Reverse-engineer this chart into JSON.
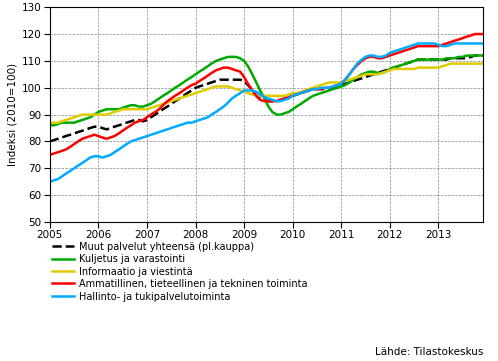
{
  "ylabel": "Indeksi (2010=100)",
  "ylim": [
    50,
    130
  ],
  "yticks": [
    50,
    60,
    70,
    80,
    90,
    100,
    110,
    120,
    130
  ],
  "xlim": [
    2005.0,
    2013.92
  ],
  "xticks": [
    2005,
    2006,
    2007,
    2008,
    2009,
    2010,
    2011,
    2012,
    2013
  ],
  "source": "Lähde: Tilastokeskus",
  "series": {
    "muut": {
      "label": "Muut palvelut yhteensä (pl.kauppa)",
      "color": "#000000",
      "linestyle": "--",
      "linewidth": 1.8,
      "x": [
        2005.0,
        2005.08,
        2005.17,
        2005.25,
        2005.33,
        2005.42,
        2005.5,
        2005.58,
        2005.67,
        2005.75,
        2005.83,
        2005.92,
        2006.0,
        2006.08,
        2006.17,
        2006.25,
        2006.33,
        2006.42,
        2006.5,
        2006.58,
        2006.67,
        2006.75,
        2006.83,
        2006.92,
        2007.0,
        2007.08,
        2007.17,
        2007.25,
        2007.33,
        2007.42,
        2007.5,
        2007.58,
        2007.67,
        2007.75,
        2007.83,
        2007.92,
        2008.0,
        2008.08,
        2008.17,
        2008.25,
        2008.33,
        2008.42,
        2008.5,
        2008.58,
        2008.67,
        2008.75,
        2008.83,
        2008.92,
        2009.0,
        2009.08,
        2009.17,
        2009.25,
        2009.33,
        2009.42,
        2009.5,
        2009.58,
        2009.67,
        2009.75,
        2009.83,
        2009.92,
        2010.0,
        2010.08,
        2010.17,
        2010.25,
        2010.33,
        2010.42,
        2010.5,
        2010.58,
        2010.67,
        2010.75,
        2010.83,
        2010.92,
        2011.0,
        2011.08,
        2011.17,
        2011.25,
        2011.33,
        2011.42,
        2011.5,
        2011.58,
        2011.67,
        2011.75,
        2011.83,
        2011.92,
        2012.0,
        2012.08,
        2012.17,
        2012.25,
        2012.33,
        2012.42,
        2012.5,
        2012.58,
        2012.67,
        2012.75,
        2012.83,
        2012.92,
        2013.0,
        2013.08,
        2013.17,
        2013.25,
        2013.33,
        2013.42,
        2013.5,
        2013.58,
        2013.67,
        2013.75,
        2013.83,
        2013.92
      ],
      "y": [
        80,
        80.5,
        81,
        81.5,
        82,
        82.5,
        83,
        83.5,
        84,
        84.5,
        85,
        85.5,
        85.5,
        85,
        84.5,
        85,
        85.5,
        86,
        86.5,
        87,
        87.5,
        88,
        88,
        87.5,
        88,
        89,
        90,
        91,
        92,
        93,
        94,
        95,
        96,
        97,
        98,
        99,
        100,
        100.5,
        101,
        101.5,
        102,
        102.5,
        103,
        103,
        103,
        103,
        103,
        103,
        102.5,
        101,
        99,
        97,
        96,
        95.5,
        95,
        95,
        95,
        95.5,
        96,
        96.5,
        97,
        97.5,
        98,
        98.5,
        99,
        99.5,
        99.5,
        99.5,
        99.5,
        99.5,
        100,
        100.5,
        101,
        101.5,
        102,
        102.5,
        103,
        103.5,
        104,
        104.5,
        105,
        105.5,
        106,
        106.5,
        107,
        107.5,
        108,
        108.5,
        109,
        109.5,
        110,
        110.5,
        110.5,
        110.5,
        110.5,
        110.5,
        110.5,
        110.5,
        110.5,
        111,
        111,
        111,
        111,
        111,
        111.5,
        112,
        112,
        112
      ]
    },
    "kuljetus": {
      "label": "Kuljetus ja varastointi",
      "color": "#00AA00",
      "linestyle": "-",
      "linewidth": 1.8,
      "x": [
        2005.0,
        2005.08,
        2005.17,
        2005.25,
        2005.33,
        2005.42,
        2005.5,
        2005.58,
        2005.67,
        2005.75,
        2005.83,
        2005.92,
        2006.0,
        2006.08,
        2006.17,
        2006.25,
        2006.33,
        2006.42,
        2006.5,
        2006.58,
        2006.67,
        2006.75,
        2006.83,
        2006.92,
        2007.0,
        2007.08,
        2007.17,
        2007.25,
        2007.33,
        2007.42,
        2007.5,
        2007.58,
        2007.67,
        2007.75,
        2007.83,
        2007.92,
        2008.0,
        2008.08,
        2008.17,
        2008.25,
        2008.33,
        2008.42,
        2008.5,
        2008.58,
        2008.67,
        2008.75,
        2008.83,
        2008.92,
        2009.0,
        2009.08,
        2009.17,
        2009.25,
        2009.33,
        2009.42,
        2009.5,
        2009.58,
        2009.67,
        2009.75,
        2009.83,
        2009.92,
        2010.0,
        2010.08,
        2010.17,
        2010.25,
        2010.33,
        2010.42,
        2010.5,
        2010.58,
        2010.67,
        2010.75,
        2010.83,
        2010.92,
        2011.0,
        2011.08,
        2011.17,
        2011.25,
        2011.33,
        2011.42,
        2011.5,
        2011.58,
        2011.67,
        2011.75,
        2011.83,
        2011.92,
        2012.0,
        2012.08,
        2012.17,
        2012.25,
        2012.33,
        2012.42,
        2012.5,
        2012.58,
        2012.67,
        2012.75,
        2012.83,
        2012.92,
        2013.0,
        2013.08,
        2013.17,
        2013.25,
        2013.33,
        2013.42,
        2013.5,
        2013.58,
        2013.67,
        2013.75,
        2013.83,
        2013.92
      ],
      "y": [
        86,
        86,
        86.5,
        87,
        87,
        87,
        87,
        87.5,
        88,
        88.5,
        89,
        90,
        91,
        91.5,
        92,
        92,
        92,
        92,
        92.5,
        93,
        93.5,
        93.5,
        93,
        93,
        93.5,
        94,
        95,
        96,
        97,
        98,
        99,
        100,
        101,
        102,
        103,
        104,
        105,
        106,
        107,
        108,
        109,
        110,
        110.5,
        111,
        111.5,
        111.5,
        111.5,
        111,
        110,
        108,
        105,
        102,
        99,
        96,
        93,
        91,
        90,
        90,
        90.5,
        91,
        92,
        93,
        94,
        95,
        96,
        97,
        97.5,
        98,
        98.5,
        99,
        99.5,
        100,
        100.5,
        101,
        102,
        103,
        104,
        105,
        105.5,
        106,
        106,
        105.5,
        105.5,
        106,
        107,
        107.5,
        108,
        108.5,
        109,
        109.5,
        110,
        110.5,
        110.5,
        110.5,
        110.5,
        110.5,
        110.5,
        110.5,
        111,
        111,
        111,
        111.5,
        111.5,
        112,
        112,
        112,
        112,
        112
      ]
    },
    "informaatio": {
      "label": "Informaatio ja viestintä",
      "color": "#DDCC00",
      "linestyle": "-",
      "linewidth": 1.8,
      "x": [
        2005.0,
        2005.08,
        2005.17,
        2005.25,
        2005.33,
        2005.42,
        2005.5,
        2005.58,
        2005.67,
        2005.75,
        2005.83,
        2005.92,
        2006.0,
        2006.08,
        2006.17,
        2006.25,
        2006.33,
        2006.42,
        2006.5,
        2006.58,
        2006.67,
        2006.75,
        2006.83,
        2006.92,
        2007.0,
        2007.08,
        2007.17,
        2007.25,
        2007.33,
        2007.42,
        2007.5,
        2007.58,
        2007.67,
        2007.75,
        2007.83,
        2007.92,
        2008.0,
        2008.08,
        2008.17,
        2008.25,
        2008.33,
        2008.42,
        2008.5,
        2008.58,
        2008.67,
        2008.75,
        2008.83,
        2008.92,
        2009.0,
        2009.08,
        2009.17,
        2009.25,
        2009.33,
        2009.42,
        2009.5,
        2009.58,
        2009.67,
        2009.75,
        2009.83,
        2009.92,
        2010.0,
        2010.08,
        2010.17,
        2010.25,
        2010.33,
        2010.42,
        2010.5,
        2010.58,
        2010.67,
        2010.75,
        2010.83,
        2010.92,
        2011.0,
        2011.08,
        2011.17,
        2011.25,
        2011.33,
        2011.42,
        2011.5,
        2011.58,
        2011.67,
        2011.75,
        2011.83,
        2011.92,
        2012.0,
        2012.08,
        2012.17,
        2012.25,
        2012.33,
        2012.42,
        2012.5,
        2012.58,
        2012.67,
        2012.75,
        2012.83,
        2012.92,
        2013.0,
        2013.08,
        2013.17,
        2013.25,
        2013.33,
        2013.42,
        2013.5,
        2013.58,
        2013.67,
        2013.75,
        2013.83,
        2013.92
      ],
      "y": [
        87,
        87,
        87,
        87.5,
        88,
        88.5,
        89,
        89.5,
        90,
        90,
        90,
        90,
        90,
        90,
        90,
        90.5,
        91,
        91.5,
        92,
        92,
        92,
        92,
        92,
        92,
        92,
        92.5,
        93,
        93.5,
        94,
        94.5,
        95,
        95.5,
        96,
        96.5,
        97,
        97.5,
        98,
        98.5,
        99,
        99.5,
        100,
        100.5,
        100.5,
        100.5,
        100.5,
        100,
        99.5,
        99,
        98.5,
        98,
        97.5,
        97,
        97,
        97,
        97,
        97,
        97,
        97,
        97,
        97.5,
        98,
        98,
        98.5,
        99,
        99.5,
        100,
        100.5,
        101,
        101.5,
        102,
        102,
        102,
        102,
        102.5,
        103,
        103.5,
        104,
        104.5,
        105,
        105,
        105,
        105,
        105.5,
        106,
        106.5,
        107,
        107,
        107,
        107,
        107,
        107,
        107.5,
        107.5,
        107.5,
        107.5,
        107.5,
        107.5,
        108,
        108.5,
        109,
        109,
        109,
        109,
        109,
        109,
        109,
        109,
        109
      ]
    },
    "ammatillinen": {
      "label": "Ammatillinen, tieteellinen ja tekninen toiminta",
      "color": "#FF0000",
      "linestyle": "-",
      "linewidth": 1.8,
      "x": [
        2005.0,
        2005.08,
        2005.17,
        2005.25,
        2005.33,
        2005.42,
        2005.5,
        2005.58,
        2005.67,
        2005.75,
        2005.83,
        2005.92,
        2006.0,
        2006.08,
        2006.17,
        2006.25,
        2006.33,
        2006.42,
        2006.5,
        2006.58,
        2006.67,
        2006.75,
        2006.83,
        2006.92,
        2007.0,
        2007.08,
        2007.17,
        2007.25,
        2007.33,
        2007.42,
        2007.5,
        2007.58,
        2007.67,
        2007.75,
        2007.83,
        2007.92,
        2008.0,
        2008.08,
        2008.17,
        2008.25,
        2008.33,
        2008.42,
        2008.5,
        2008.58,
        2008.67,
        2008.75,
        2008.83,
        2008.92,
        2009.0,
        2009.08,
        2009.17,
        2009.25,
        2009.33,
        2009.42,
        2009.5,
        2009.58,
        2009.67,
        2009.75,
        2009.83,
        2009.92,
        2010.0,
        2010.08,
        2010.17,
        2010.25,
        2010.33,
        2010.42,
        2010.5,
        2010.58,
        2010.67,
        2010.75,
        2010.83,
        2010.92,
        2011.0,
        2011.08,
        2011.17,
        2011.25,
        2011.33,
        2011.42,
        2011.5,
        2011.58,
        2011.67,
        2011.75,
        2011.83,
        2011.92,
        2012.0,
        2012.08,
        2012.17,
        2012.25,
        2012.33,
        2012.42,
        2012.5,
        2012.58,
        2012.67,
        2012.75,
        2012.83,
        2012.92,
        2013.0,
        2013.08,
        2013.17,
        2013.25,
        2013.33,
        2013.42,
        2013.5,
        2013.58,
        2013.67,
        2013.75,
        2013.83,
        2013.92
      ],
      "y": [
        75,
        75.5,
        76,
        76.5,
        77,
        78,
        79,
        80,
        81,
        81.5,
        82,
        82.5,
        82,
        81.5,
        81,
        81.5,
        82,
        83,
        84,
        85,
        86,
        87,
        87.5,
        88,
        89,
        90,
        91,
        92,
        93.5,
        95,
        96,
        97,
        98,
        99,
        100,
        101,
        101.5,
        102.5,
        103.5,
        104.5,
        105.5,
        106.5,
        107,
        107.5,
        107.5,
        107,
        106.5,
        106,
        104,
        101.5,
        99,
        97,
        95.5,
        95,
        95,
        95,
        95,
        95.5,
        96,
        96.5,
        97,
        97.5,
        98,
        98.5,
        99,
        99.5,
        99.5,
        99.5,
        100,
        100,
        100.5,
        101,
        101.5,
        103,
        105,
        107,
        108.5,
        110,
        111,
        111.5,
        111.5,
        111,
        111,
        111.5,
        112,
        112.5,
        113,
        113.5,
        114,
        114.5,
        115,
        115.5,
        115.5,
        115.5,
        115.5,
        115.5,
        115.5,
        116,
        116.5,
        117,
        117.5,
        118,
        118.5,
        119,
        119.5,
        120,
        120,
        120
      ]
    },
    "hallinto": {
      "label": "Hallinto- ja tukipalvelutoiminta",
      "color": "#00AAFF",
      "linestyle": "-",
      "linewidth": 1.8,
      "x": [
        2005.0,
        2005.08,
        2005.17,
        2005.25,
        2005.33,
        2005.42,
        2005.5,
        2005.58,
        2005.67,
        2005.75,
        2005.83,
        2005.92,
        2006.0,
        2006.08,
        2006.17,
        2006.25,
        2006.33,
        2006.42,
        2006.5,
        2006.58,
        2006.67,
        2006.75,
        2006.83,
        2006.92,
        2007.0,
        2007.08,
        2007.17,
        2007.25,
        2007.33,
        2007.42,
        2007.5,
        2007.58,
        2007.67,
        2007.75,
        2007.83,
        2007.92,
        2008.0,
        2008.08,
        2008.17,
        2008.25,
        2008.33,
        2008.42,
        2008.5,
        2008.58,
        2008.67,
        2008.75,
        2008.83,
        2008.92,
        2009.0,
        2009.08,
        2009.17,
        2009.25,
        2009.33,
        2009.42,
        2009.5,
        2009.58,
        2009.67,
        2009.75,
        2009.83,
        2009.92,
        2010.0,
        2010.08,
        2010.17,
        2010.25,
        2010.33,
        2010.42,
        2010.5,
        2010.58,
        2010.67,
        2010.75,
        2010.83,
        2010.92,
        2011.0,
        2011.08,
        2011.17,
        2011.25,
        2011.33,
        2011.42,
        2011.5,
        2011.58,
        2011.67,
        2011.75,
        2011.83,
        2011.92,
        2012.0,
        2012.08,
        2012.17,
        2012.25,
        2012.33,
        2012.42,
        2012.5,
        2012.58,
        2012.67,
        2012.75,
        2012.83,
        2012.92,
        2013.0,
        2013.08,
        2013.17,
        2013.25,
        2013.33,
        2013.42,
        2013.5,
        2013.58,
        2013.67,
        2013.75,
        2013.83,
        2013.92
      ],
      "y": [
        65,
        65.5,
        66,
        67,
        68,
        69,
        70,
        71,
        72,
        73,
        74,
        74.5,
        74.5,
        74,
        74.5,
        75,
        76,
        77,
        78,
        79,
        80,
        80.5,
        81,
        81.5,
        82,
        82.5,
        83,
        83.5,
        84,
        84.5,
        85,
        85.5,
        86,
        86.5,
        87,
        87,
        87.5,
        88,
        88.5,
        89,
        90,
        91,
        92,
        93,
        94.5,
        96,
        97,
        98,
        99,
        99,
        99,
        98.5,
        97.5,
        96.5,
        96,
        95.5,
        95,
        95,
        95.5,
        96,
        97,
        97.5,
        98,
        98.5,
        99,
        99.5,
        99.5,
        100,
        100,
        100,
        100.5,
        101,
        101.5,
        103,
        105,
        107,
        109,
        110.5,
        111.5,
        112,
        112,
        111.5,
        111.5,
        112,
        113,
        113.5,
        114,
        114.5,
        115,
        115.5,
        116,
        116.5,
        116.5,
        116.5,
        116.5,
        116.5,
        116,
        115.5,
        115.5,
        116,
        116.5,
        116.5,
        116.5,
        116.5,
        116.5,
        116.5,
        116.5,
        116.5
      ]
    }
  },
  "legend_items": [
    {
      "label": "Muut palvelut yhteensä (pl.kauppa)",
      "color": "#000000",
      "linestyle": "--"
    },
    {
      "label": "Kuljetus ja varastointi",
      "color": "#00AA00",
      "linestyle": "-"
    },
    {
      "label": "Informaatio ja viestintä",
      "color": "#DDCC00",
      "linestyle": "-"
    },
    {
      "label": "Ammatillinen, tieteellinen ja tekninen toiminta",
      "color": "#FF0000",
      "linestyle": "-"
    },
    {
      "label": "Hallinto- ja tukipalvelutoiminta",
      "color": "#00AAFF",
      "linestyle": "-"
    }
  ]
}
